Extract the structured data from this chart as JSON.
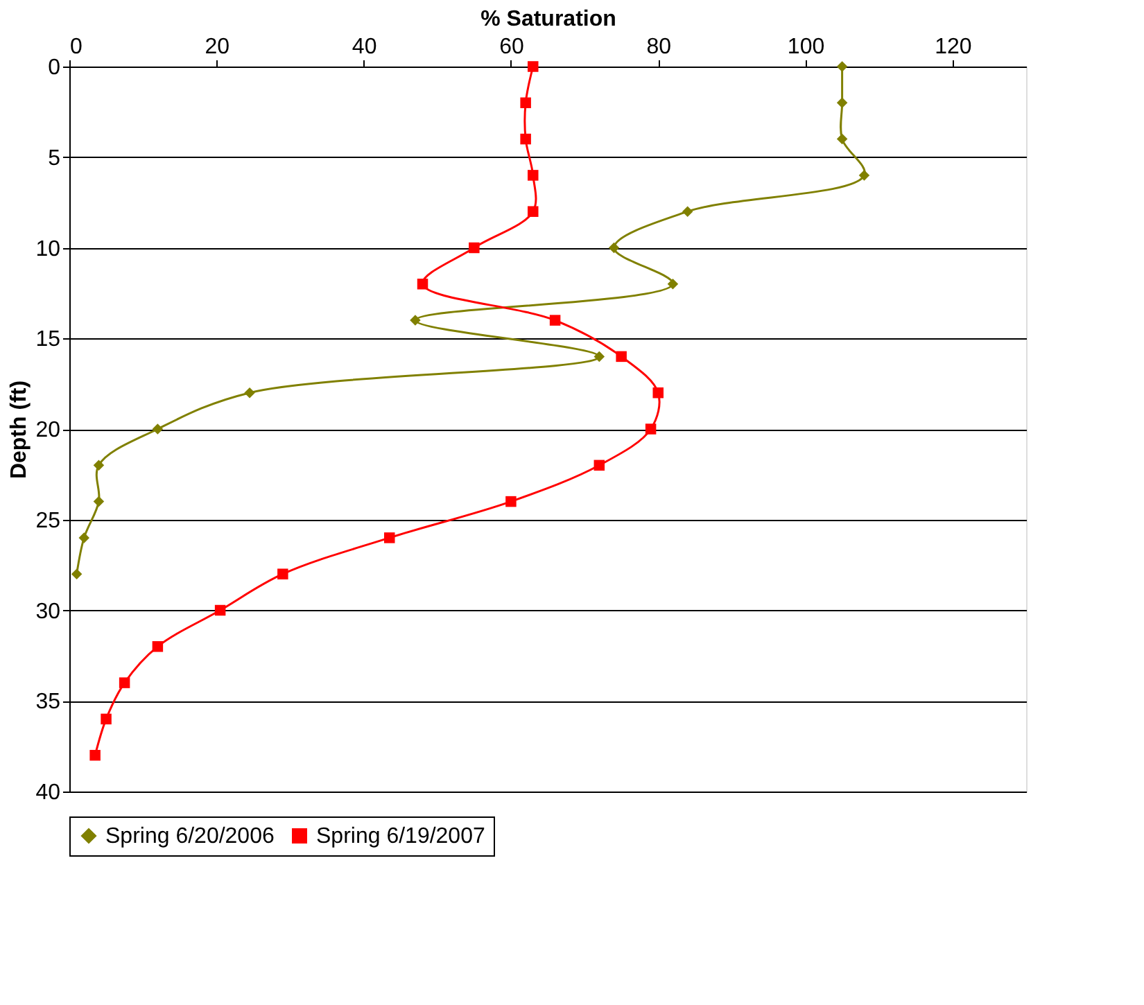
{
  "chart_data": {
    "type": "line",
    "xlabel": "% Saturation",
    "ylabel": "Depth (ft)",
    "xlim": [
      0,
      130
    ],
    "xticks": [
      0,
      20,
      40,
      60,
      80,
      100,
      120
    ],
    "ylim": [
      40,
      0
    ],
    "yticks": [
      0,
      5,
      10,
      15,
      20,
      25,
      30,
      35,
      40
    ],
    "grid": "y",
    "legend": "bottom",
    "line_style": "solid",
    "series": [
      {
        "name": "Spring 6/20/2006",
        "color": "#808000",
        "marker": "diamond",
        "x": [
          105,
          105,
          105,
          108,
          84,
          74,
          82,
          47,
          72,
          24.5,
          12,
          4,
          4,
          2,
          1
        ],
        "values": [
          0,
          2,
          4,
          6,
          8,
          10,
          12,
          14,
          16,
          18,
          20,
          22,
          24,
          26,
          28
        ]
      },
      {
        "name": "Spring 6/19/2007",
        "color": "#ff0000",
        "marker": "square",
        "x": [
          63,
          62,
          62,
          63,
          63,
          55,
          48,
          66,
          75,
          80,
          79,
          72,
          60,
          43.5,
          29,
          20.5,
          12,
          7.5,
          5,
          3.5
        ],
        "values": [
          0,
          2,
          4,
          6,
          8,
          10,
          12,
          14,
          16,
          18,
          20,
          22,
          24,
          26,
          28,
          30,
          32,
          34,
          36,
          38
        ]
      }
    ]
  }
}
